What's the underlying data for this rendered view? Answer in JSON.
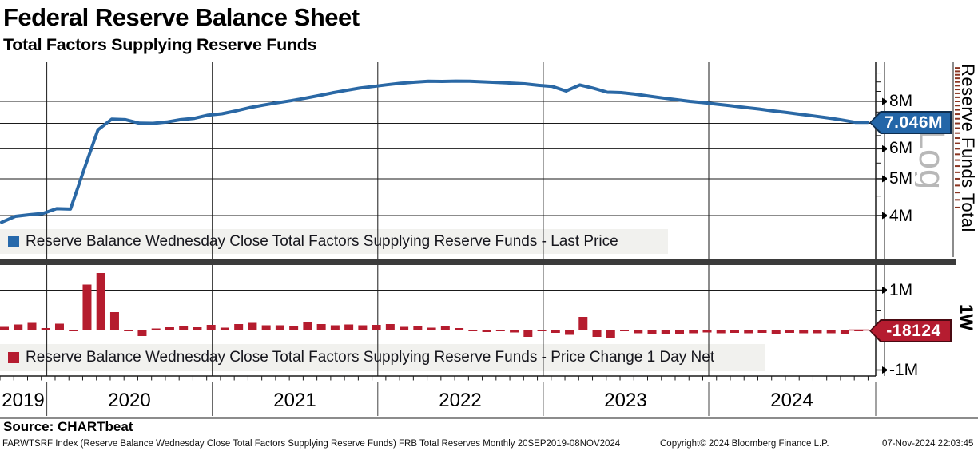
{
  "header": {
    "title": "Federal Reserve Balance Sheet",
    "subtitle": "Total Factors Supplying Reserve Funds"
  },
  "colors": {
    "line": "#2a68a5",
    "bar": "#b51c2e",
    "tag_blue": "#2366a8",
    "tag_blue_border": "#0e2d4e",
    "tag_red": "#b51c30",
    "tag_red_border": "#4a0a12",
    "grid": "#1a1a1a",
    "legend_bg": "#f1f1ee",
    "separator": "#3b3b3b",
    "watermark": "#b8b8b8",
    "minor_dash": "#8a3420"
  },
  "right_axis": {
    "title": "Reserve Funds Total",
    "scale": "Log",
    "period": "1W"
  },
  "xaxis": {
    "years": [
      "2019",
      "2020",
      "2021",
      "2022",
      "2023",
      "2024"
    ]
  },
  "chart_data": [
    {
      "type": "line",
      "name": "Reserve Balance Wednesday Close Total Factors Supplying Reserve Funds",
      "legend": "Reserve Balance Wednesday Close Total Factors Supplying Reserve Funds - Last Price",
      "scale": "log",
      "unit": "millions",
      "frequency": "monthly",
      "range": "20SEP2019-08NOV2024",
      "last_price_label": "7.046M",
      "last_price_value": 7.046,
      "ylim": [
        3.7,
        10.1
      ],
      "yticks": [
        {
          "label": "8M",
          "value": 8
        },
        {
          "label": "7M",
          "value": 7,
          "hidden": true
        },
        {
          "label": "6M",
          "value": 6
        },
        {
          "label": "5M",
          "value": 5
        },
        {
          "label": "4M",
          "value": 4
        }
      ],
      "values": [
        3.84,
        3.98,
        4.02,
        4.05,
        4.17,
        4.16,
        5.3,
        6.73,
        7.18,
        7.16,
        7.01,
        7.0,
        7.06,
        7.16,
        7.22,
        7.36,
        7.42,
        7.55,
        7.7,
        7.82,
        7.93,
        8.03,
        8.15,
        8.28,
        8.42,
        8.55,
        8.67,
        8.76,
        8.85,
        8.93,
        8.99,
        9.04,
        9.03,
        9.05,
        9.04,
        9.01,
        8.98,
        8.94,
        8.9,
        8.82,
        8.76,
        8.52,
        8.84,
        8.66,
        8.46,
        8.44,
        8.36,
        8.26,
        8.17,
        8.08,
        8.0,
        7.94,
        7.86,
        7.79,
        7.71,
        7.64,
        7.55,
        7.48,
        7.4,
        7.32,
        7.24,
        7.15,
        7.046
      ]
    },
    {
      "type": "bar",
      "name": "Reserve Balance Wednesday Close Total Factors Supplying Reserve Funds - Price Change 1 Day Net",
      "legend": "Reserve Balance Wednesday Close Total Factors Supplying Reserve Funds - Price Change 1 Day Net",
      "unit": "millions",
      "frequency": "monthly",
      "last_price_label": "-18124",
      "last_price_value": -0.018124,
      "ylim": [
        -1.4,
        1.6
      ],
      "yticks": [
        {
          "label": "1M",
          "value": 1
        },
        {
          "label": "-1M",
          "value": -1
        }
      ],
      "values": [
        0.08,
        0.14,
        0.18,
        0.05,
        0.16,
        -0.02,
        1.14,
        1.43,
        0.45,
        -0.03,
        -0.15,
        0.04,
        0.07,
        0.1,
        0.07,
        0.13,
        0.06,
        0.15,
        0.18,
        0.12,
        0.12,
        0.1,
        0.21,
        0.15,
        0.12,
        0.14,
        0.12,
        0.13,
        0.15,
        0.08,
        0.1,
        0.06,
        0.09,
        0.05,
        -0.03,
        -0.05,
        -0.02,
        -0.06,
        -0.17,
        -0.02,
        -0.07,
        -0.12,
        0.33,
        -0.17,
        -0.2,
        -0.02,
        -0.08,
        -0.1,
        -0.09,
        -0.09,
        -0.08,
        -0.06,
        -0.08,
        -0.07,
        -0.08,
        -0.07,
        -0.09,
        -0.07,
        -0.08,
        -0.08,
        -0.08,
        -0.09,
        -0.018
      ]
    }
  ],
  "source": "Source: CHARTbeat",
  "footer": {
    "left": "FARWTSRF Index (Reserve Balance Wednesday Close Total Factors Supplying Reserve Funds) FRB Total Reserves  Monthly 20SEP2019-08NOV2024",
    "center": "Copyright© 2024 Bloomberg Finance L.P.",
    "right": "07-Nov-2024 22:03:45"
  }
}
